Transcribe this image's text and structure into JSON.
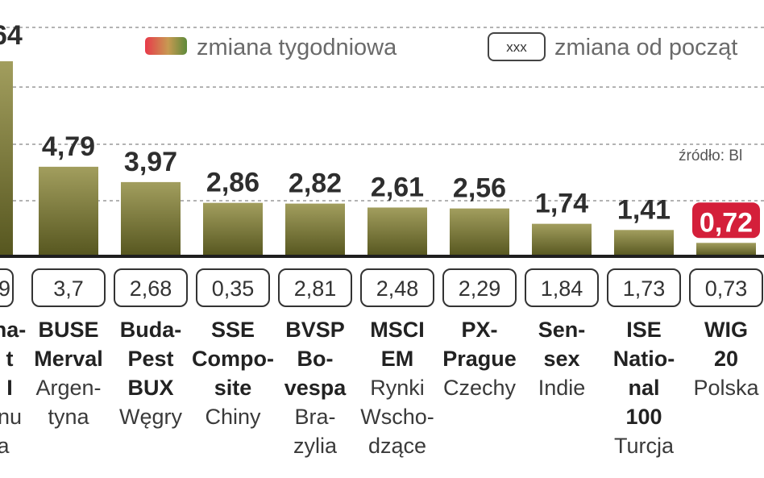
{
  "chart_data": {
    "type": "bar",
    "legend": {
      "weekly_label": "zmiana tygodniowa",
      "ytd_box": "xxx",
      "ytd_label": "zmiana od począt"
    },
    "source": "źródło: Bl",
    "first_bar_value_partial": "64",
    "first_change_partial": "9",
    "first_name_partial": [
      "na-",
      "t",
      "I"
    ],
    "first_country_partial": [
      "nu"
    ],
    "first_tail_partial": "a",
    "categories": [
      {
        "value": 4.79,
        "label": "4,79",
        "change": "3,7",
        "name": [
          "BUSE",
          "Merval"
        ],
        "country": [
          "Argen-",
          "tyna"
        ]
      },
      {
        "value": 3.97,
        "label": "3,97",
        "change": "2,68",
        "name": [
          "Buda-",
          "Pest",
          "BUX"
        ],
        "country": [
          "Węgry"
        ]
      },
      {
        "value": 2.86,
        "label": "2,86",
        "change": "0,35",
        "name": [
          "SSE",
          "Compo-",
          "site"
        ],
        "country": [
          "Chiny"
        ]
      },
      {
        "value": 2.82,
        "label": "2,82",
        "change": "2,81",
        "name": [
          "BVSP",
          "Bo-",
          "vespa"
        ],
        "country": [
          "Bra-",
          "zylia"
        ]
      },
      {
        "value": 2.61,
        "label": "2,61",
        "change": "2,48",
        "name": [
          "MSCI",
          "EM"
        ],
        "country": [
          "Rynki",
          "Wscho-",
          "dzące"
        ]
      },
      {
        "value": 2.56,
        "label": "2,56",
        "change": "2,29",
        "name": [
          "PX-",
          "Prague"
        ],
        "country": [
          "Czechy"
        ]
      },
      {
        "value": 1.74,
        "label": "1,74",
        "change": "1,84",
        "name": [
          "Sen-",
          "sex"
        ],
        "country": [
          "Indie"
        ]
      },
      {
        "value": 1.41,
        "label": "1,41",
        "change": "1,73",
        "name": [
          "ISE",
          "Natio-",
          "nal",
          "100"
        ],
        "country": [
          "Turcja"
        ]
      },
      {
        "value": 0.72,
        "label": "0,72",
        "change": "0,73",
        "name": [
          "WIG",
          "20"
        ],
        "country": [
          "Polska"
        ],
        "highlight": true
      }
    ],
    "colors": {
      "bar_top": "#9a9656",
      "bar_bottom": "#5b5a22",
      "highlight": "#d41f3a",
      "grid": "#9a9a9a",
      "baseline": "#1f1f1f"
    }
  }
}
